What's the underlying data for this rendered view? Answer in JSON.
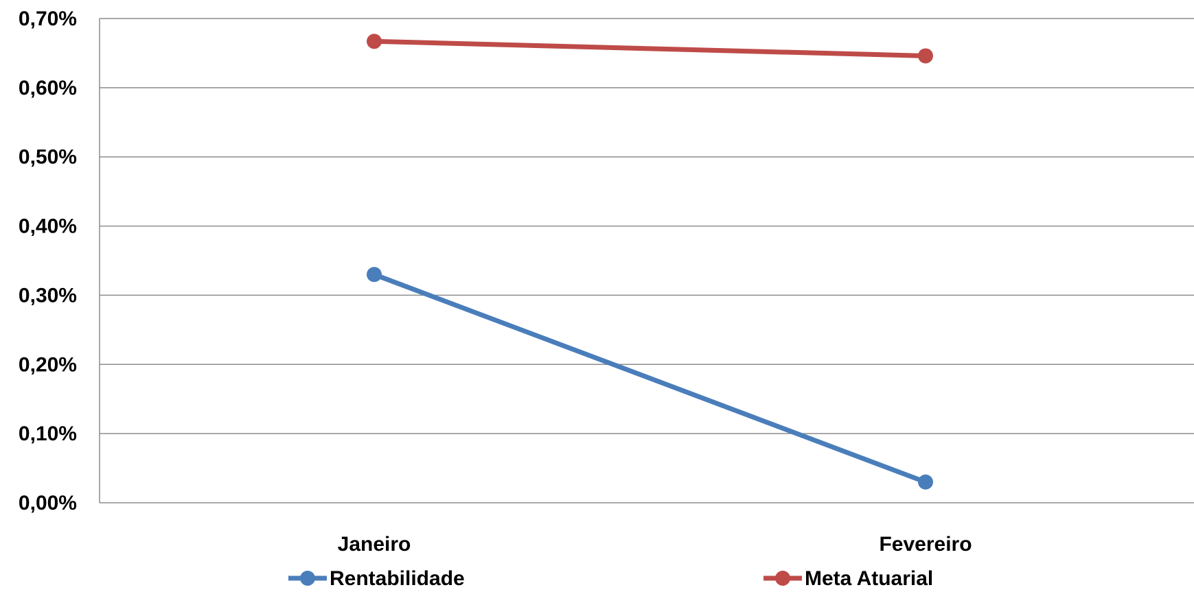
{
  "chart_data": {
    "type": "line",
    "title": "",
    "xlabel": "",
    "ylabel": "",
    "categories": [
      "Janeiro",
      "Fevereiro"
    ],
    "ylim": [
      0,
      0.7
    ],
    "y_ticks": [
      0,
      0.1,
      0.2,
      0.3,
      0.4,
      0.5,
      0.6,
      0.7
    ],
    "y_tick_labels": [
      "0,00%",
      "0,10%",
      "0,20%",
      "0,30%",
      "0,40%",
      "0,50%",
      "0,60%",
      "0,70%"
    ],
    "y_unit": "%",
    "grid": true,
    "legend_position": "bottom",
    "series": [
      {
        "name": "Rentabilidade",
        "color": "#4a7ebb",
        "values": [
          0.33,
          0.03
        ]
      },
      {
        "name": "Meta Atuarial",
        "color": "#be4b48",
        "values": [
          0.667,
          0.646
        ]
      }
    ]
  }
}
